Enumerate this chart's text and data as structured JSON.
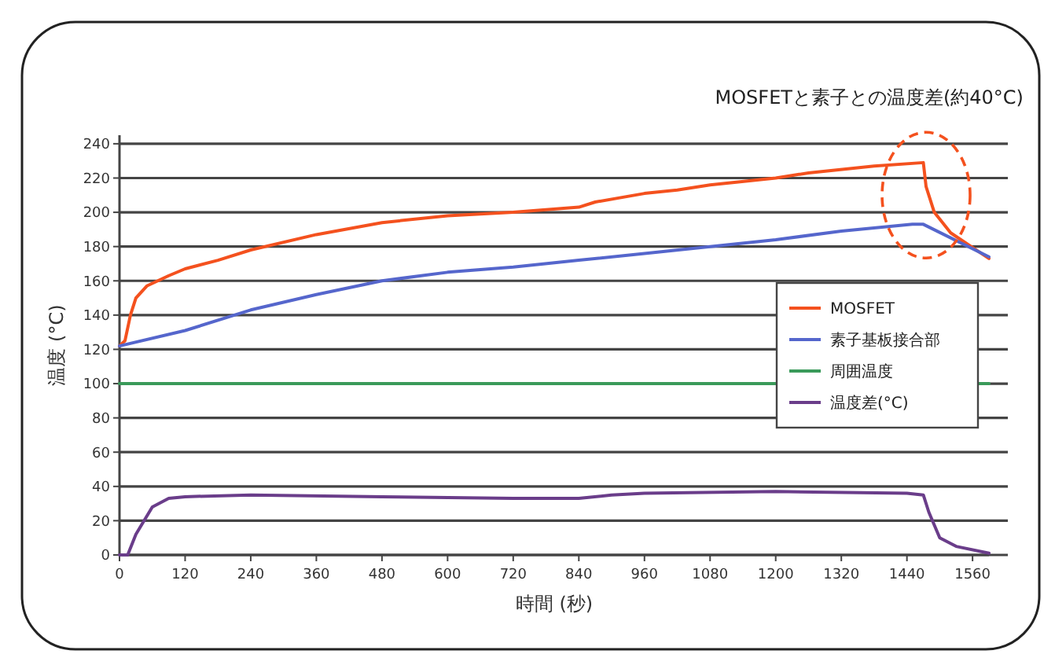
{
  "chart_data": {
    "type": "line",
    "xlabel": "時間 (秒)",
    "ylabel": "温度 (°C)",
    "annotations": [
      "MOSFETと素子との温度差(約40°C)"
    ],
    "xlim": [
      0,
      1590
    ],
    "xticks": [
      0,
      120,
      240,
      360,
      480,
      600,
      720,
      840,
      960,
      1080,
      1200,
      1320,
      1440,
      1560
    ],
    "ylim": [
      0,
      245
    ],
    "yticks": [
      0,
      20,
      40,
      60,
      80,
      100,
      120,
      140,
      160,
      180,
      200,
      220,
      240
    ],
    "grid": "y",
    "legend": "right",
    "marker": "none",
    "line_style": "solid",
    "series": [
      {
        "name": "MOSFET",
        "color": "#f4511e",
        "x": [
          0,
          10,
          20,
          30,
          50,
          90,
          120,
          180,
          240,
          360,
          480,
          600,
          720,
          840,
          870,
          960,
          1020,
          1080,
          1200,
          1260,
          1380,
          1470,
          1475,
          1490,
          1520,
          1590
        ],
        "values": [
          122,
          125,
          140,
          150,
          157,
          163,
          167,
          172,
          178,
          187,
          194,
          198,
          200,
          203,
          206,
          211,
          213,
          216,
          220,
          223,
          227,
          229,
          215,
          200,
          188,
          173
        ]
      },
      {
        "name": "素子基板接合部",
        "color": "#5566cc",
        "x": [
          0,
          120,
          240,
          360,
          480,
          600,
          720,
          840,
          960,
          1080,
          1200,
          1320,
          1450,
          1470,
          1590
        ],
        "values": [
          122,
          131,
          143,
          152,
          160,
          165,
          168,
          172,
          176,
          180,
          184,
          189,
          193,
          193,
          174
        ]
      },
      {
        "name": "周囲温度",
        "color": "#3a9a5a",
        "x": [
          0,
          1590
        ],
        "values": [
          100,
          100
        ]
      },
      {
        "name": "温度差(°C)",
        "color": "#6a3d8a",
        "x": [
          0,
          15,
          30,
          60,
          90,
          120,
          240,
          480,
          720,
          840,
          900,
          960,
          1200,
          1440,
          1470,
          1480,
          1500,
          1530,
          1590
        ],
        "values": [
          0,
          0,
          12,
          28,
          33,
          34,
          35,
          34,
          33,
          33,
          35,
          36,
          37,
          36,
          35,
          25,
          10,
          5,
          1
        ]
      }
    ]
  }
}
